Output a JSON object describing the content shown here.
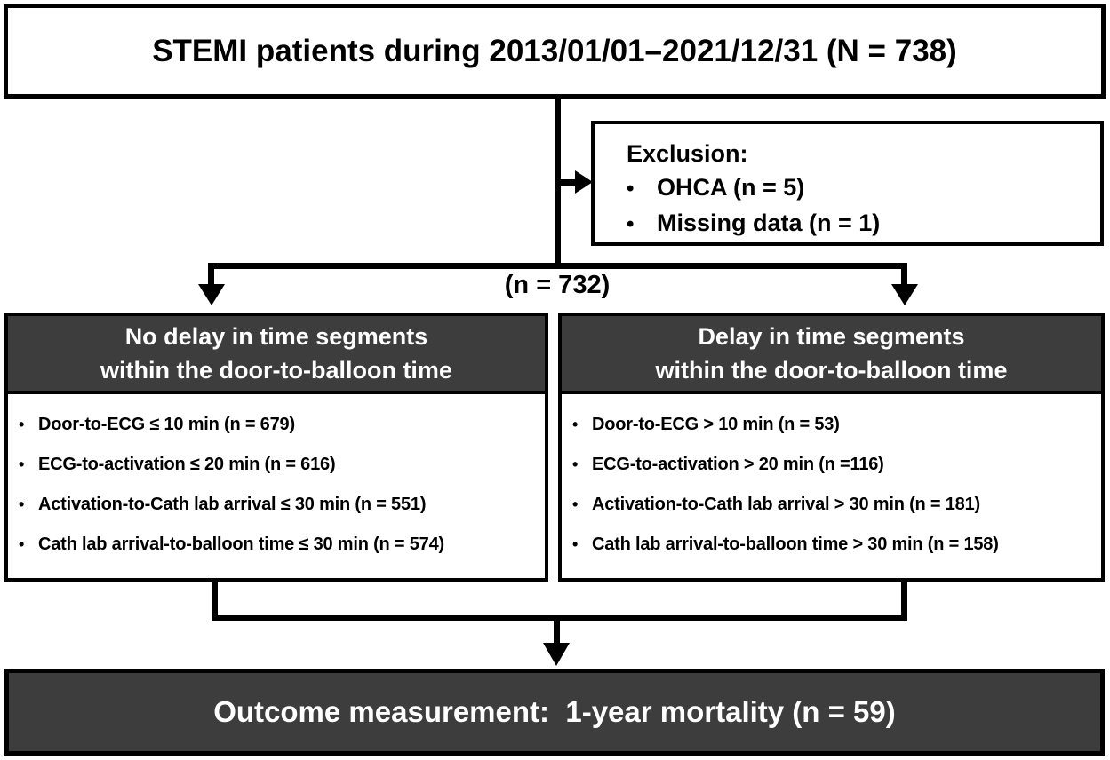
{
  "glyphs": {
    "bullet": "•"
  },
  "colors": {
    "background": "#ffffff",
    "border": "#000000",
    "dark_fill": "#3d3d3d",
    "light_text": "#ffffff",
    "dark_text": "#000000"
  },
  "title_box": {
    "label": "STEMI patients during 2013/01/01–2021/12/31 (N = 738)"
  },
  "exclusion_box": {
    "title": "Exclusion:",
    "items": [
      "OHCA (n = 5)",
      "Missing data (n = 1)"
    ]
  },
  "branch": {
    "label": "(n = 732)"
  },
  "no_delay_box": {
    "header_lines": [
      "No delay in time segments",
      "within the door-to-balloon time"
    ],
    "items": [
      "Door-to-ECG ≤ 10 min (n = 679)",
      "ECG-to-activation ≤ 20 min (n = 616)",
      "Activation-to-Cath lab arrival ≤ 30 min (n = 551)",
      "Cath lab arrival-to-balloon time ≤ 30 min (n = 574)"
    ]
  },
  "delay_box": {
    "header_lines": [
      "Delay in time segments",
      "within the door-to-balloon time"
    ],
    "items": [
      "Door-to-ECG > 10 min (n = 53)",
      "ECG-to-activation > 20 min (n =116)",
      "Activation-to-Cath lab arrival > 30 min (n = 181)",
      "Cath lab arrival-to-balloon time > 30 min (n = 158)"
    ]
  },
  "outcome_box": {
    "label": "Outcome measurement:  1-year mortality (n = 59)"
  }
}
